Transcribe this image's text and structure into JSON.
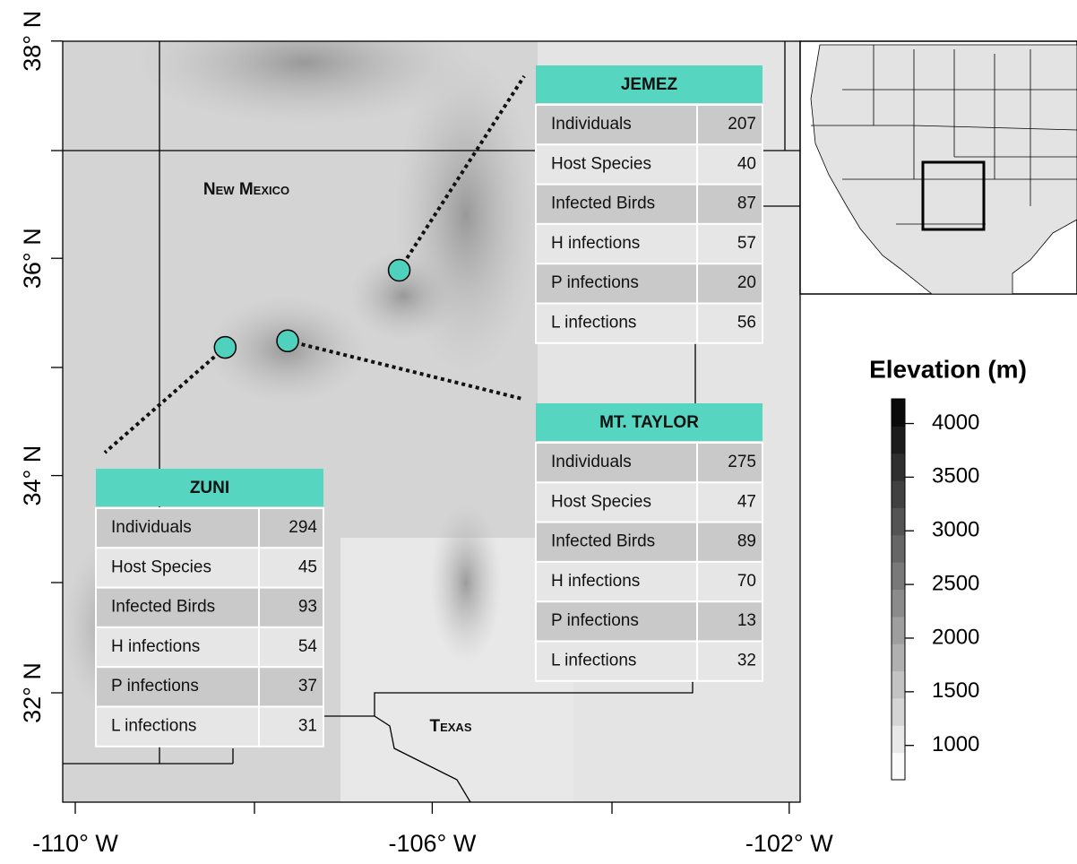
{
  "map": {
    "x_axis": {
      "ticks": [
        {
          "value": -110,
          "label": "-110° W"
        },
        {
          "value": -106,
          "label": "-106° W"
        },
        {
          "value": -102,
          "label": "-102° W"
        }
      ]
    },
    "y_axis": {
      "ticks": [
        {
          "value": 32,
          "label": "32° N"
        },
        {
          "value": 34,
          "label": "34° N"
        },
        {
          "value": 36,
          "label": "36° N"
        },
        {
          "value": 38,
          "label": "38° N"
        }
      ]
    },
    "region_labels": [
      "New Mexico",
      "Texas"
    ],
    "sites": [
      {
        "name": "JEMEZ",
        "lon": -106.37,
        "lat": 35.89,
        "rows": [
          [
            "Individuals",
            207
          ],
          [
            "Host Species",
            40
          ],
          [
            "Infected Birds",
            87
          ],
          [
            "H infections",
            57
          ],
          [
            "P infections",
            20
          ],
          [
            "L infections",
            56
          ]
        ]
      },
      {
        "name": "MT. TAYLOR",
        "lon": -107.62,
        "lat": 35.24,
        "rows": [
          [
            "Individuals",
            275
          ],
          [
            "Host Species",
            47
          ],
          [
            "Infected Birds",
            89
          ],
          [
            "H infections",
            70
          ],
          [
            "P infections",
            13
          ],
          [
            "L infections",
            32
          ]
        ]
      },
      {
        "name": "ZUNI",
        "lon": -108.32,
        "lat": 35.18,
        "rows": [
          [
            "Individuals",
            294
          ],
          [
            "Host Species",
            45
          ],
          [
            "Infected Birds",
            93
          ],
          [
            "H infections",
            54
          ],
          [
            "P infections",
            37
          ],
          [
            "L infections",
            31
          ]
        ]
      }
    ]
  },
  "legend": {
    "title": "Elevation (m)",
    "ticks": [
      1000,
      1500,
      2000,
      2500,
      3000,
      3500,
      4000
    ],
    "range": [
      680,
      4230
    ]
  }
}
